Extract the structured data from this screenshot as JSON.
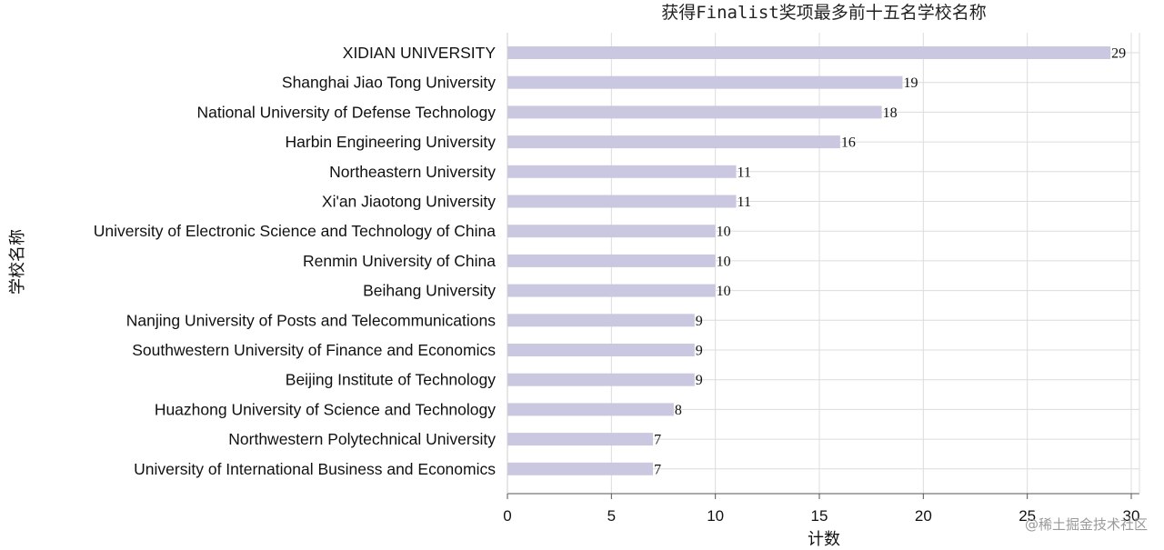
{
  "chart_data": {
    "type": "bar",
    "orientation": "horizontal",
    "title": "获得Finalist奖项最多前十五名学校名称",
    "xlabel": "计数",
    "ylabel": "学校名称",
    "xlim": [
      0,
      30
    ],
    "xticks": [
      0,
      5,
      10,
      15,
      20,
      25,
      30
    ],
    "grid": true,
    "bar_color": "#cac8e1",
    "categories": [
      "XIDIAN UNIVERSITY",
      "Shanghai Jiao Tong University",
      "National University of Defense Technology",
      "Harbin Engineering University",
      "Northeastern University",
      "Xi'an Jiaotong University",
      "University of Electronic Science and Technology of China",
      "Renmin University of China",
      "Beihang University",
      "Nanjing University of Posts and Telecommunications",
      "Southwestern University of Finance and Economics",
      "Beijing Institute of Technology",
      "Huazhong University of Science and Technology",
      "Northwestern Polytechnical University",
      "University of International Business and Economics"
    ],
    "values": [
      29,
      19,
      18,
      16,
      11,
      11,
      10,
      10,
      10,
      9,
      9,
      9,
      8,
      7,
      7
    ]
  },
  "watermark": "@稀土掘金技术社区"
}
